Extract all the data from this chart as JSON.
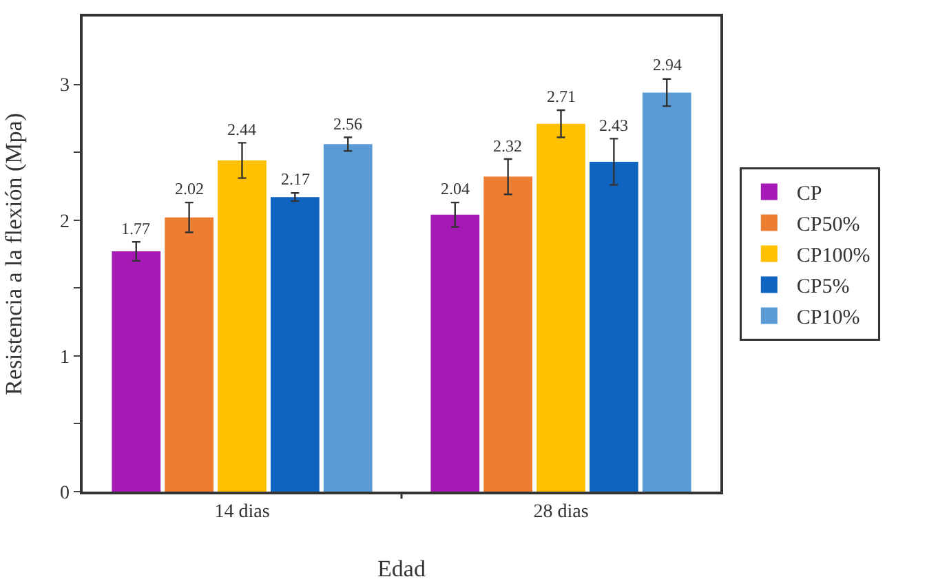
{
  "chart_data": {
    "type": "bar",
    "xlabel": "Edad",
    "ylabel": "Resistencia a la flexión (Mpa)",
    "categories": [
      "14 dias",
      "28 dias"
    ],
    "series": [
      {
        "name": "CP",
        "color": "#a51ab5",
        "values": [
          1.77,
          2.04
        ],
        "errors": [
          0.07,
          0.09
        ]
      },
      {
        "name": "CP50%",
        "color": "#ed7d31",
        "values": [
          2.02,
          2.32
        ],
        "errors": [
          0.11,
          0.13
        ]
      },
      {
        "name": "CP100%",
        "color": "#ffc000",
        "values": [
          2.44,
          2.71
        ],
        "errors": [
          0.13,
          0.1
        ]
      },
      {
        "name": "CP5%",
        "color": "#0f64c0",
        "values": [
          2.17,
          2.43
        ],
        "errors": [
          0.03,
          0.17
        ]
      },
      {
        "name": "CP10%",
        "color": "#5b9bd5",
        "values": [
          2.56,
          2.94
        ],
        "errors": [
          0.05,
          0.1
        ]
      }
    ],
    "ylim": [
      0,
      3.5
    ],
    "yticks": [
      0,
      {
        "value": 0.5,
        "label": null
      },
      1,
      {
        "value": 1.5,
        "label": null
      },
      2,
      {
        "value": 2.5,
        "label": null
      },
      3
    ],
    "data_labels": true,
    "grid": false,
    "legend": "right"
  }
}
